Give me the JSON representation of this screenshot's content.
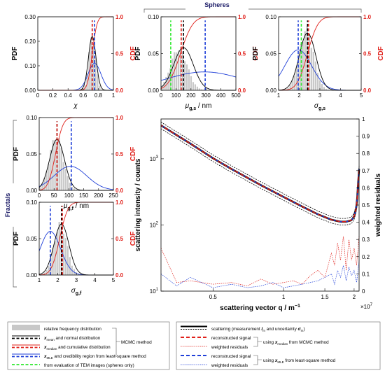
{
  "colors": {
    "hist": "#c8c8c8",
    "pdf": "#000000",
    "normal": "#1f3fd8",
    "cdf": "#e0201a",
    "tem": "#2ee82e",
    "gridline": "#dddddd"
  },
  "group_labels": {
    "spheres": "Spheres",
    "fractals": "Fractals"
  },
  "chart_data": [
    {
      "id": "chi",
      "type": "bar",
      "xlabel": "χ",
      "ylabel": "PDF",
      "y2label": "CDF",
      "xlim": [
        0,
        1
      ],
      "ylim": [
        0,
        0.3
      ],
      "y2lim": [
        0,
        1.0
      ],
      "xticks": [
        "0",
        "0.2",
        "0.4",
        "0.6",
        "0.8",
        "1"
      ],
      "xtick_values": [
        0,
        0.2,
        0.4,
        0.6,
        0.8,
        1
      ],
      "yticks": [
        "0.00",
        "0.10",
        "0.20",
        "0.30"
      ],
      "ytick_values": [
        0,
        0.1,
        0.2,
        0.3
      ],
      "y2ticks": [
        "0.0",
        "0.5",
        "1.0"
      ],
      "y2tick_values": [
        0,
        0.5,
        1
      ],
      "hist": {
        "mean": 0.72,
        "sd": 0.045,
        "peak": 0.21
      },
      "pdf": {
        "mean": 0.72,
        "sd": 0.05,
        "peak": 0.22
      },
      "normal": {
        "mean": 0.75,
        "sd": 0.085,
        "peak": 0.11
      },
      "cdf": {
        "mean": 0.72,
        "sd": 0.05
      },
      "vlines": {
        "mean": 0.72,
        "median": 0.72,
        "ml": 0.75
      }
    },
    {
      "id": "mu_s",
      "type": "bar",
      "xlabel": "μ",
      "xsub": "g,s",
      "xunit": " / nm",
      "ylabel": "PDF",
      "y2label": "CDF",
      "xlim": [
        0,
        500
      ],
      "ylim": [
        0,
        0.1
      ],
      "y2lim": [
        0,
        1.0
      ],
      "xticks": [
        "0",
        "100",
        "200",
        "300",
        "400",
        "500"
      ],
      "xtick_values": [
        0,
        100,
        200,
        300,
        400,
        500
      ],
      "yticks": [
        "0.00",
        "0.05",
        "0.10"
      ],
      "ytick_values": [
        0,
        0.05,
        0.1
      ],
      "y2ticks": [
        "0.0",
        "0.5",
        "1.0"
      ],
      "y2tick_values": [
        0,
        0.5,
        1
      ],
      "hist": {
        "mean": 120,
        "sd": 55,
        "peak": 0.055
      },
      "pdf": {
        "mean": 150,
        "sd": 65,
        "peak": 0.058
      },
      "normal": {
        "mean": 290,
        "sd": 260,
        "peak": 0.025
      },
      "cdf": {
        "mean": 130,
        "sd": 65
      },
      "vlines": {
        "mean": 150,
        "median": 135,
        "ml": 295,
        "tem": 65
      }
    },
    {
      "id": "sigma_s",
      "type": "bar",
      "xlabel": "σ",
      "xsub": "g,s",
      "xunit": "",
      "ylabel": "PDF",
      "y2label": "CDF",
      "xlim": [
        1,
        5
      ],
      "ylim": [
        0,
        0.1
      ],
      "y2lim": [
        0,
        1.0
      ],
      "xticks": [
        "1",
        "2",
        "3",
        "4",
        "5"
      ],
      "xtick_values": [
        1,
        2,
        3,
        4,
        5
      ],
      "yticks": [
        "0.00",
        "0.05",
        "0.10"
      ],
      "ytick_values": [
        0,
        0.05,
        0.1
      ],
      "y2ticks": [
        "0.0",
        "0.5",
        "1.0"
      ],
      "y2tick_values": [
        0,
        0.5,
        1
      ],
      "hist": {
        "mean": 2.35,
        "sd": 0.35,
        "peak": 0.08
      },
      "pdf": {
        "mean": 2.4,
        "sd": 0.4,
        "peak": 0.078
      },
      "normal": {
        "mean": 1.95,
        "sd": 0.65,
        "peak": 0.055
      },
      "cdf": {
        "mean": 2.4,
        "sd": 0.4
      },
      "vlines": {
        "mean": 2.4,
        "median": 2.45,
        "ml": 1.95,
        "tem": 2.1
      }
    },
    {
      "id": "mu_f",
      "type": "bar",
      "xlabel": "μ",
      "xsub": "g,f",
      "xunit": " / nm",
      "ylabel": "PDF",
      "y2label": "CDF",
      "xlim": [
        0,
        250
      ],
      "ylim": [
        0,
        0.1
      ],
      "y2lim": [
        0,
        1.0
      ],
      "xticks": [
        "0",
        "50",
        "100",
        "150",
        "200",
        "250"
      ],
      "xtick_values": [
        0,
        50,
        100,
        150,
        200,
        250
      ],
      "yticks": [
        "0.00",
        "0.05",
        "0.10"
      ],
      "ytick_values": [
        0,
        0.05,
        0.1
      ],
      "y2ticks": [
        "0.0",
        "0.5",
        "1.0"
      ],
      "y2tick_values": [
        0,
        0.5,
        1
      ],
      "hist": {
        "mean": 58,
        "sd": 23,
        "peak": 0.072
      },
      "pdf": {
        "mean": 60,
        "sd": 25,
        "peak": 0.07
      },
      "normal": {
        "mean": 105,
        "sd": 55,
        "peak": 0.033
      },
      "cdf": {
        "mean": 55,
        "sd": 20
      },
      "vlines": {
        "mean": 60,
        "median": 60,
        "ml": 108
      }
    },
    {
      "id": "sigma_f",
      "type": "bar",
      "xlabel": "σ",
      "xsub": "g,f",
      "xunit": "",
      "ylabel": "PDF",
      "y2label": "CDF",
      "xlim": [
        1,
        5
      ],
      "ylim": [
        0,
        0.1
      ],
      "y2lim": [
        0,
        1.0
      ],
      "xticks": [
        "1",
        "2",
        "3",
        "4",
        "5"
      ],
      "xtick_values": [
        1,
        2,
        3,
        4,
        5
      ],
      "yticks": [
        "0.00",
        "0.05",
        "0.10"
      ],
      "ytick_values": [
        0,
        0.05,
        0.1
      ],
      "y2ticks": [
        "0.0",
        "0.5",
        "1.0"
      ],
      "y2tick_values": [
        0,
        0.5,
        1
      ],
      "hist": {
        "mean": 2.15,
        "sd": 0.35,
        "peak": 0.068
      },
      "pdf": {
        "mean": 2.2,
        "sd": 0.4,
        "peak": 0.07
      },
      "normal": {
        "mean": 1.6,
        "sd": 0.55,
        "peak": 0.06
      },
      "cdf": {
        "mean": 2.1,
        "sd": 0.35
      },
      "vlines": {
        "mean": 2.2,
        "median": 2.25,
        "ml": 1.6
      }
    },
    {
      "id": "scattering",
      "type": "line",
      "xlabel": "scattering vector q / m",
      "xlabel_sup": "−1",
      "ylabel": "scattering intensity / counts",
      "y2label": "weighted residuals",
      "xscale": "log",
      "xlim": [
        3000000,
        21000000
      ],
      "yscale": "log",
      "ylim": [
        10,
        4000
      ],
      "y2lim": [
        0,
        1.0
      ],
      "xticks": [
        "0.5",
        "1",
        "1.5",
        "2"
      ],
      "xtick_values": [
        5000000,
        10000000,
        15000000,
        20000000
      ],
      "x_multiplier": "×10",
      "x_multiplier_exp": "7",
      "yticks": [
        "10",
        "10",
        "10"
      ],
      "ytick_exps": [
        "1",
        "2",
        "3"
      ],
      "ytick_values": [
        10,
        100,
        1000
      ],
      "y2ticks": [
        "0",
        "0.1",
        "0.2",
        "0.3",
        "0.4",
        "0.5",
        "0.6",
        "0.7",
        "0.8",
        "0.9",
        "1"
      ],
      "y2tick_values": [
        0,
        0.1,
        0.2,
        0.3,
        0.4,
        0.5,
        0.6,
        0.7,
        0.8,
        0.9,
        1
      ],
      "series": [
        {
          "role": "measurement",
          "q": [
            3000000,
            4000000,
            5000000,
            6000000,
            8000000,
            10000000,
            12000000,
            14000000,
            16000000,
            17500000,
            18500000,
            19500000,
            20000000,
            20500000,
            21000000
          ],
          "I": [
            3200,
            1700,
            1020,
            700,
            400,
            265,
            190,
            145,
            120,
            112,
            112,
            118,
            135,
            190,
            700
          ]
        },
        {
          "role": "residual_mcmc",
          "q": [
            3000000,
            3500000,
            4000000,
            5000000,
            6000000,
            7000000,
            8000000,
            9000000,
            10000000,
            11000000,
            12000000,
            13000000,
            14000000,
            15000000,
            16000000,
            16500000,
            17000000,
            17500000,
            18000000,
            18500000,
            19000000,
            19500000,
            20000000,
            20500000,
            21000000
          ],
          "r": [
            0.25,
            0.05,
            0.06,
            0.04,
            0.05,
            0.03,
            0.07,
            0.04,
            0.05,
            0.06,
            0.04,
            0.09,
            0.12,
            0.08,
            0.22,
            0.15,
            0.28,
            0.18,
            0.32,
            0.12,
            0.3,
            0.18,
            0.25,
            0.15,
            0.32
          ]
        },
        {
          "role": "residual_ml",
          "q": [
            3000000,
            3500000,
            4000000,
            5000000,
            6000000,
            7000000,
            8000000,
            9000000,
            10000000,
            11000000,
            12000000,
            13000000,
            14000000,
            15000000,
            16000000,
            16500000,
            17000000,
            17500000,
            18000000,
            18500000,
            19000000,
            19500000,
            20000000,
            20500000,
            21000000
          ],
          "r": [
            0.1,
            0.03,
            0.08,
            0.02,
            0.04,
            0.02,
            0.03,
            0.05,
            0.02,
            0.03,
            0.04,
            0.05,
            0.06,
            0.08,
            0.1,
            0.04,
            0.12,
            0.08,
            0.15,
            0.06,
            0.14,
            0.09,
            0.12,
            0.05,
            0.18
          ]
        }
      ]
    }
  ],
  "legend_left": {
    "items": [
      {
        "key": "hist",
        "segments": [
          {
            "text": "relative frequency distribution"
          }
        ]
      },
      {
        "key": "mean",
        "segments": [
          {
            "text": "x",
            "style": "bi"
          },
          {
            "text": "mean",
            "style": "sub"
          },
          {
            "text": " and normal distribution"
          }
        ]
      },
      {
        "key": "median",
        "segments": [
          {
            "text": "x",
            "style": "bi"
          },
          {
            "text": "median",
            "style": "sub"
          },
          {
            "text": " and cumulative distribution"
          }
        ]
      },
      {
        "key": "ml",
        "segments": [
          {
            "text": "x",
            "style": "bi"
          },
          {
            "text": "MLE",
            "style": "sub"
          },
          {
            "text": " and credibility region from least-square method"
          }
        ]
      },
      {
        "key": "tem",
        "segments": [
          {
            "text": "from evaluation of TEM images (spheres only)"
          }
        ]
      }
    ],
    "method": "MCMC method"
  },
  "legend_right": {
    "items": [
      {
        "key": "scatter",
        "segments": [
          {
            "text": "scattering (measurement "
          },
          {
            "text": "I",
            "style": "bi"
          },
          {
            "text": "m",
            "style": "sub"
          },
          {
            "text": " and uncertainty "
          },
          {
            "text": "σ",
            "style": "bi"
          },
          {
            "text": "m",
            "style": "sub"
          },
          {
            "text": ")"
          }
        ]
      },
      {
        "key": "rec_mcmc",
        "segments": [
          {
            "text": "reconstructed signal"
          }
        ]
      },
      {
        "key": "res_mcmc",
        "segments": [
          {
            "text": "weighted residuals"
          }
        ]
      },
      {
        "key": "rec_ml",
        "segments": [
          {
            "text": "reconstructed signal"
          }
        ]
      },
      {
        "key": "res_ml",
        "segments": [
          {
            "text": "weighted residuals"
          }
        ]
      }
    ],
    "using_mcmc": [
      {
        "text": "using "
      },
      {
        "text": "x",
        "style": "bi"
      },
      {
        "text": "median",
        "style": "sub"
      },
      {
        "text": " from MCMC method"
      }
    ],
    "using_ml": [
      {
        "text": "using "
      },
      {
        "text": "x",
        "style": "bi"
      },
      {
        "text": "MLE",
        "style": "sub"
      },
      {
        "text": " from least-square method"
      }
    ]
  }
}
